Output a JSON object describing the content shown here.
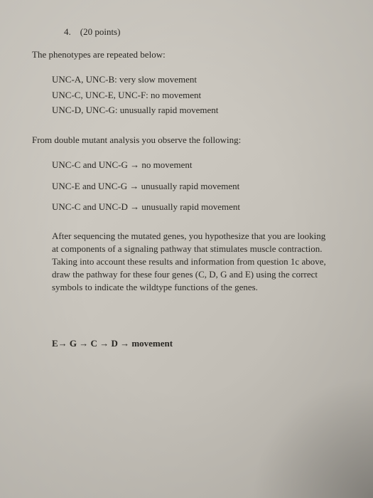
{
  "question": {
    "number": "4.",
    "points": "(20 points)"
  },
  "intro": "The phenotypes are repeated below:",
  "phenotypes": {
    "line1": "UNC-A, UNC-B:  very slow movement",
    "line2": "UNC-C, UNC-E, UNC-F:  no movement",
    "line3": "UNC-D, UNC-G:  unusually rapid movement"
  },
  "subheader": "From double mutant analysis you observe the following:",
  "mutants": {
    "line1_pre": "UNC-C and UNC-G ",
    "line1_post": "  no movement",
    "line2_pre": "UNC-E and UNC-G ",
    "line2_post": "  unusually rapid movement",
    "line3_pre": "UNC-C  and UNC-D ",
    "line3_post": "  unusually rapid movement"
  },
  "arrow": "→",
  "paragraph": "After sequencing the mutated genes, you hypothesize that you are looking at components of a signaling pathway that stimulates muscle contraction.   Taking into account these results and information from question 1c above, draw the pathway for these four genes (C, D, G and E) using the correct symbols to indicate the wildtype functions of the genes.",
  "answer": {
    "e": "E",
    "g": " G ",
    "c": " C ",
    "d": " D ",
    "final": " movement"
  }
}
